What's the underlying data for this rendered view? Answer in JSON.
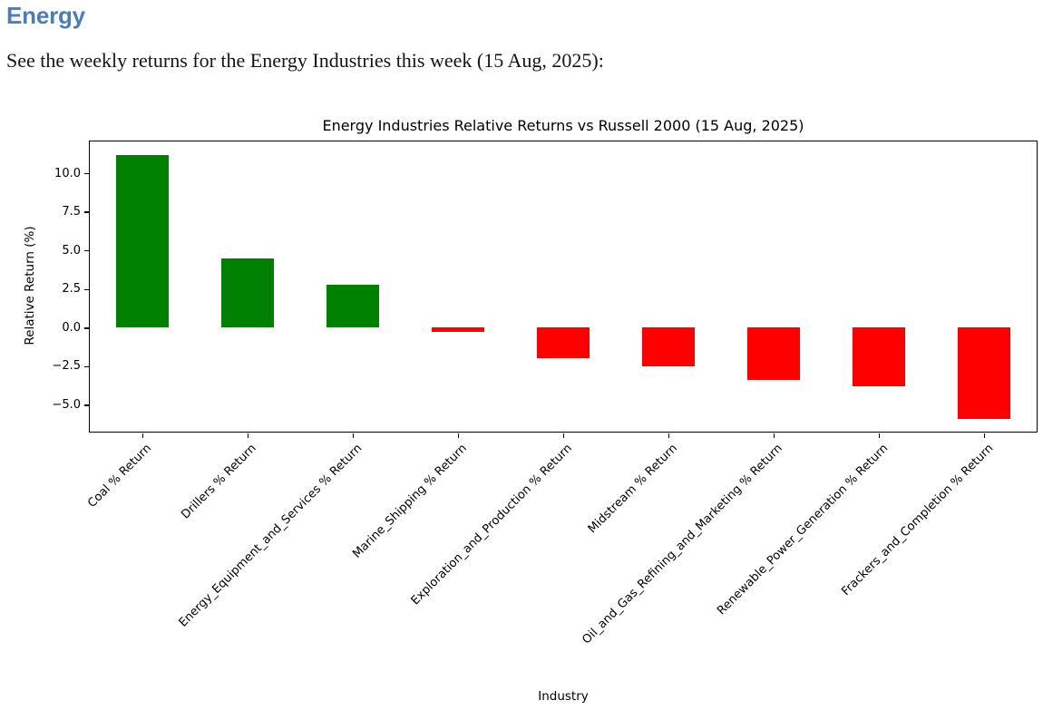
{
  "page": {
    "background": "#ffffff"
  },
  "header": {
    "title": "Energy",
    "color": "#4a7dba"
  },
  "intro": {
    "text": "See the weekly returns for the Energy Industries this week (15 Aug, 2025):"
  },
  "chart_data": {
    "type": "bar",
    "title": "Energy Industries Relative Returns vs Russell 2000 (15 Aug, 2025)",
    "xlabel": "Industry",
    "ylabel": "Relative Return (%)",
    "categories": [
      "Coal % Return",
      "Drillers % Return",
      "Energy_Equipment_and_Services % Return",
      "Marine_Shipping % Return",
      "Exploration_and_Production % Return",
      "Midstream % Return",
      "Oil_and_Gas_Refining_and_Marketing % Return",
      "Renewable_Power_Generation % Return",
      "Frackers_and_Completion % Return"
    ],
    "values": [
      11.2,
      4.5,
      2.8,
      -0.3,
      -2.0,
      -2.5,
      -3.4,
      -3.8,
      -5.9
    ],
    "positive_color": "#008000",
    "negative_color": "#ff0000",
    "yticks": [
      10.0,
      7.5,
      5.0,
      2.5,
      0.0,
      -2.5,
      -5.0
    ],
    "ytick_labels": [
      "10.0",
      "7.5",
      "5.0",
      "2.5",
      "0.0",
      "−2.5",
      "−5.0"
    ],
    "ylim": [
      -6.73,
      12.06
    ],
    "bar_rel_width": 0.5,
    "grid": false,
    "legend_position": "none",
    "x_label_rotation_deg": 45
  }
}
